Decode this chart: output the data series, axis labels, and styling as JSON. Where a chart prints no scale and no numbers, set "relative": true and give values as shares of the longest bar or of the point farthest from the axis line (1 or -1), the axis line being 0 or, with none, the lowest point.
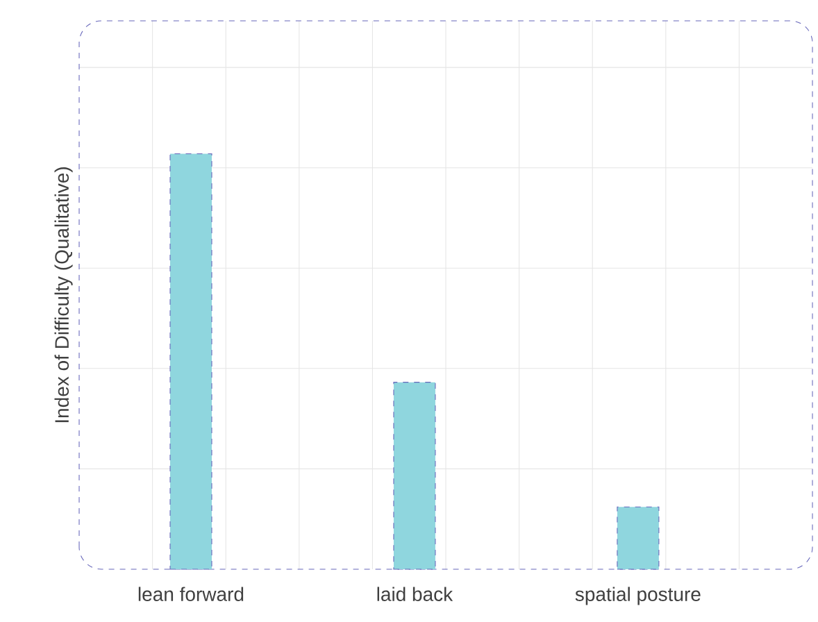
{
  "chart_data": {
    "type": "bar",
    "ylabel": "Index of Difficulty (Qualitative)",
    "categories": [
      "lean forward",
      "laid back",
      "spatial posture"
    ],
    "values": [
      1,
      0.45,
      0.15
    ],
    "color": "#8fd6de",
    "relative": true,
    "grid": true
  }
}
